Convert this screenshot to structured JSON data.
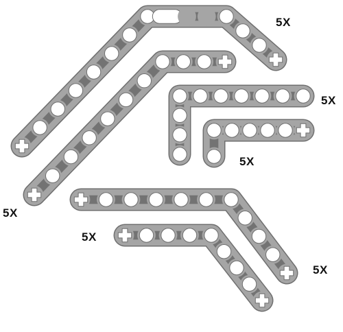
{
  "colors": {
    "background": "#ffffff",
    "beam_fill": "#a5a5a5",
    "beam_outline": "#6f6f6f",
    "hole": "#ffffff",
    "web_shadow": "#4a4a4a",
    "label": "#111111"
  },
  "parts": [
    {
      "name": "bent-liftarm-large-slotted",
      "quantity_label": "5X"
    },
    {
      "name": "bent-liftarm-large-axle-ends",
      "quantity_label": "5X"
    },
    {
      "name": "l-liftarm-large",
      "quantity_label": "5X"
    },
    {
      "name": "l-liftarm-small",
      "quantity_label": "5X"
    },
    {
      "name": "bent-liftarm-long-lower",
      "quantity_label": "5X"
    },
    {
      "name": "bent-liftarm-short-lower",
      "quantity_label": "5X"
    }
  ]
}
